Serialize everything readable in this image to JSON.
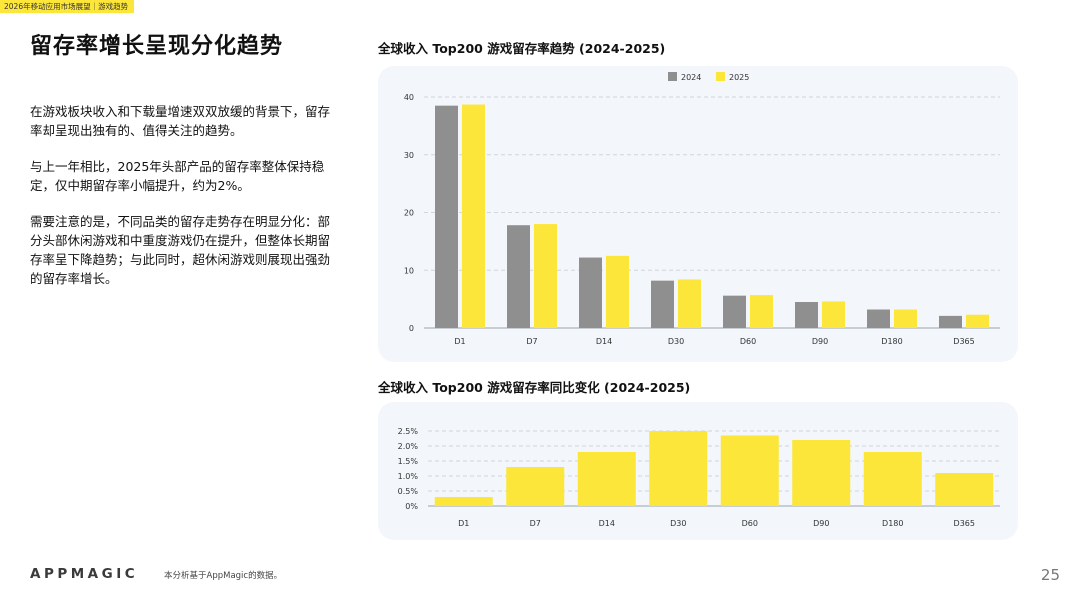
{
  "header": {
    "badge": "2026年移动应用市场展望｜游戏趋势"
  },
  "title": "留存率增长呈现分化趋势",
  "paragraphs": [
    "在游戏板块收入和下载量增速双双放缓的背景下，留存率却呈现出独有的、值得关注的趋势。",
    "与上一年相比，2025年头部产品的留存率整体保持稳定，仅中期留存率小幅提升，约为2%。",
    "需要注意的是，不同品类的留存走势存在明显分化：部分头部休闲游戏和中重度游戏仍在提升，但整体长期留存率呈下降趋势；与此同时，超休闲游戏则展现出强劲的留存率增长。"
  ],
  "footer": {
    "logo": "APPMAGIC",
    "note": "本分析基于AppMagic的数据。",
    "page": "25"
  },
  "colors": {
    "s2024": "#8f8f8f",
    "s2025": "#fde63a",
    "panel": "#f3f7fb",
    "grid": "#cfd6dd"
  },
  "chart_data": [
    {
      "type": "bar",
      "title": "全球收入 Top200 游戏留存率趋势 (2024-2025)",
      "categories": [
        "D1",
        "D7",
        "D14",
        "D30",
        "D60",
        "D90",
        "D180",
        "D365"
      ],
      "series": [
        {
          "name": "2024",
          "values": [
            38.5,
            17.8,
            12.2,
            8.2,
            5.6,
            4.5,
            3.2,
            2.1
          ]
        },
        {
          "name": "2025",
          "values": [
            38.7,
            18.0,
            12.5,
            8.4,
            5.7,
            4.6,
            3.2,
            2.3
          ]
        }
      ],
      "ylim": [
        0,
        40
      ],
      "yticks": [
        "0",
        "10",
        "20",
        "30",
        "40"
      ],
      "ytick_values": [
        0,
        10,
        20,
        30,
        40
      ],
      "grid": true,
      "legend": "top-center"
    },
    {
      "type": "bar",
      "title": "全球收入 Top200 游戏留存率同比变化 (2024-2025)",
      "categories": [
        "D1",
        "D7",
        "D14",
        "D30",
        "D60",
        "D90",
        "D180",
        "D365"
      ],
      "series": [
        {
          "values": [
            0.3,
            1.3,
            1.8,
            2.5,
            2.35,
            2.2,
            1.8,
            1.1
          ]
        }
      ],
      "ylim": [
        0,
        2.5
      ],
      "yticks": [
        "0%",
        "0.5%",
        "1.0%",
        "1.5%",
        "2.0%",
        "2.5%"
      ],
      "ytick_values": [
        0,
        0.5,
        1.0,
        1.5,
        2.0,
        2.5
      ],
      "grid": true
    }
  ]
}
